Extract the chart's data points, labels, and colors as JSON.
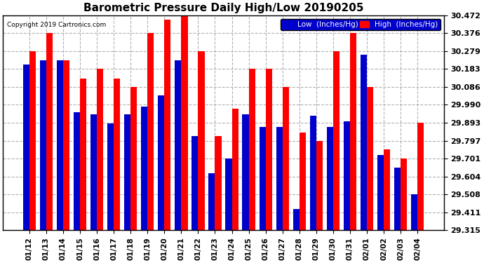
{
  "title": "Barometric Pressure Daily High/Low 20190205",
  "copyright": "Copyright 2019 Cartronics.com",
  "background_color": "#ffffff",
  "plot_bg_color": "#ffffff",
  "bar_color_low": "#0000cc",
  "bar_color_high": "#ff0000",
  "legend_low": "Low  (Inches/Hg)",
  "legend_high": "High  (Inches/Hg)",
  "legend_bg": "#0000cc",
  "ylim_min": 29.315,
  "ylim_max": 30.472,
  "yticks": [
    29.315,
    29.411,
    29.508,
    29.604,
    29.701,
    29.797,
    29.893,
    29.99,
    30.086,
    30.183,
    30.279,
    30.376,
    30.472
  ],
  "dates": [
    "01/12",
    "01/13",
    "01/14",
    "01/15",
    "01/16",
    "01/17",
    "01/18",
    "01/19",
    "01/20",
    "01/21",
    "01/22",
    "01/23",
    "01/24",
    "01/25",
    "01/26",
    "01/27",
    "01/28",
    "01/29",
    "01/30",
    "01/31",
    "02/01",
    "02/02",
    "02/03",
    "02/04"
  ],
  "low_values": [
    30.207,
    30.23,
    30.23,
    29.95,
    29.94,
    29.89,
    29.94,
    29.98,
    30.04,
    30.23,
    29.82,
    29.62,
    29.7,
    29.94,
    29.87,
    29.87,
    29.43,
    29.93,
    29.87,
    29.9,
    30.26,
    29.72,
    29.65,
    29.51
  ],
  "high_values": [
    30.28,
    30.376,
    30.23,
    30.13,
    30.183,
    30.13,
    30.086,
    30.376,
    30.45,
    30.472,
    30.279,
    29.82,
    29.97,
    30.183,
    30.183,
    30.086,
    29.84,
    29.797,
    30.279,
    30.376,
    30.086,
    29.75,
    29.701,
    29.893
  ],
  "bar_bottom": 29.315
}
